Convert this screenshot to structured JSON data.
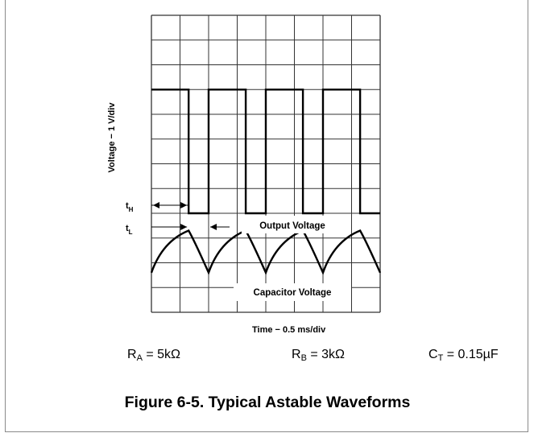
{
  "chart_data": {
    "type": "line",
    "title": "",
    "xlabel": "Time − 0.5 ms/div",
    "ylabel": "Voltage − 1 V/div",
    "grid": true,
    "x_divisions": 8,
    "y_divisions": 12,
    "series": [
      {
        "name": "Output Voltage",
        "x": [
          0,
          1.3,
          1.3,
          2.0,
          2.0,
          3.3,
          3.3,
          4.0,
          4.0,
          5.3,
          5.3,
          6.0,
          6.0,
          7.3,
          7.3,
          8.0
        ],
        "y": [
          9,
          9,
          4,
          4,
          9,
          9,
          4,
          4,
          9,
          9,
          4,
          4,
          9,
          9,
          4,
          4
        ]
      },
      {
        "name": "Capacitor Voltage",
        "x": [
          0,
          1.3,
          2.0,
          3.3,
          4.0,
          5.3,
          6.0,
          7.3,
          8.0
        ],
        "y": [
          1.6,
          3.3,
          1.6,
          3.3,
          1.6,
          3.3,
          1.6,
          3.3,
          1.6
        ]
      }
    ],
    "annotations": {
      "output_label": "Output Voltage",
      "capacitor_label": "Capacitor Voltage",
      "t_high": "H",
      "t_low": "L",
      "t_symbol": "t"
    }
  },
  "params": [
    {
      "sym": "R",
      "sub": "A",
      "val": " = 5kΩ"
    },
    {
      "sym": "R",
      "sub": "B",
      "val": " = 3kΩ"
    },
    {
      "sym": "C",
      "sub": "T",
      "val": " = 0.15µF"
    }
  ],
  "figure_caption": "Figure 6-5. Typical Astable Waveforms"
}
